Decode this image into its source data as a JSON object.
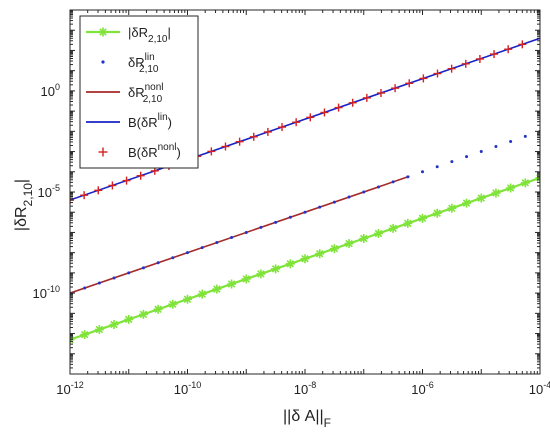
{
  "chart_data": {
    "type": "line",
    "xscale": "log",
    "yscale": "log",
    "xlim": [
      1e-12,
      0.0001
    ],
    "ylim": [
      1e-14,
      10000.0
    ],
    "grid": false,
    "legend_position": "top-left",
    "xlabel": "||δ A||",
    "xlabel_sub": "F",
    "ylabel": "|δR",
    "ylabel_sub": "2,10",
    "ylabel_tail": "|",
    "x_ticks": [
      {
        "value": 1e-12,
        "base": "10",
        "exp": "-12"
      },
      {
        "value": 1e-10,
        "base": "10",
        "exp": "-10"
      },
      {
        "value": 1e-08,
        "base": "10",
        "exp": "-8"
      },
      {
        "value": 1e-06,
        "base": "10",
        "exp": "-6"
      },
      {
        "value": 0.0001,
        "base": "10",
        "exp": "-4"
      }
    ],
    "y_ticks": [
      {
        "value": 1,
        "base": "10",
        "exp": "0"
      },
      {
        "value": 1e-05,
        "base": "10",
        "exp": "-5"
      },
      {
        "value": 1e-10,
        "base": "10",
        "exp": "-10"
      }
    ],
    "series": [
      {
        "legend_base": "|δR",
        "legend_sub": "2,10",
        "legend_sup": "",
        "legend_tail": "|",
        "color": "#7fe33a",
        "style": "line-star",
        "x_start": 1e-12,
        "x_end": 0.0001,
        "slope": 1,
        "y_at_x_start": 5e-13,
        "points": 33
      },
      {
        "legend_base": "δR",
        "legend_sub": "2,10",
        "legend_sup": "lin",
        "legend_tail": "",
        "color": "#2233c8",
        "style": "dots",
        "x_start": 1e-12,
        "x_end": 0.0001,
        "slope": 1,
        "y_at_x_start": 1e-10,
        "points": 33
      },
      {
        "legend_base": "δR",
        "legend_sub": "2,10",
        "legend_sup": "nonl",
        "legend_tail": "",
        "color": "#a52a2a",
        "style": "line",
        "x_start": 1e-12,
        "x_end": 6e-07,
        "slope": 1,
        "y_at_x_start": 1e-10
      },
      {
        "legend_base": "B(δR",
        "legend_sub": "",
        "legend_sup": "lin",
        "legend_tail": ")",
        "color": "#1a22c4",
        "style": "line",
        "x_start": 1e-12,
        "x_end": 0.0001,
        "slope": 1,
        "y_at_x_start": 4e-06
      },
      {
        "legend_base": "B(δR",
        "legend_sub": "",
        "legend_sup": "nonl",
        "legend_tail": ")",
        "color": "#d62020",
        "style": "plus",
        "x_start": 1e-12,
        "x_end": 5e-05,
        "slope": 1,
        "y_at_x_start": 4e-06,
        "points": 33
      }
    ]
  }
}
